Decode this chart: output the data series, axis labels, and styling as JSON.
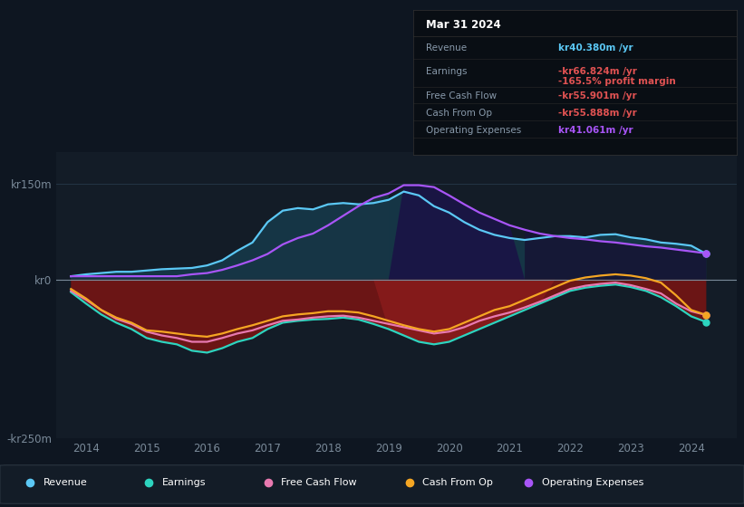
{
  "bg_color": "#0e1621",
  "plot_bg_color": "#131c27",
  "grid_color": "#1e2d3d",
  "title_date": "Mar 31 2024",
  "tooltip": {
    "Revenue": {
      "value": "kr40.380m",
      "color": "#5bc8f5"
    },
    "Earnings": {
      "value": "-kr66.824m",
      "color": "#e05252"
    },
    "profit_margin": "-165.5%",
    "profit_margin_color": "#e05252",
    "Free Cash Flow": {
      "value": "-kr55.901m",
      "color": "#e05252"
    },
    "Cash From Op": {
      "value": "-kr55.888m",
      "color": "#e05252"
    },
    "Operating Expenses": {
      "value": "kr41.061m",
      "color": "#a855f7"
    }
  },
  "ylim": [
    -250,
    200
  ],
  "yticks": [
    -250,
    0,
    150
  ],
  "ytick_labels": [
    "-kr250m",
    "kr0",
    "kr150m"
  ],
  "xlim_start": 2013.5,
  "xlim_end": 2024.75,
  "xticks": [
    2014,
    2015,
    2016,
    2017,
    2018,
    2019,
    2020,
    2021,
    2022,
    2023,
    2024
  ],
  "colors": {
    "revenue": "#5bc8f5",
    "earnings": "#2dd4bf",
    "free_cash_flow": "#e879b0",
    "cash_from_op": "#f5a623",
    "op_expenses": "#a855f7"
  },
  "years": [
    2013.75,
    2014.0,
    2014.25,
    2014.5,
    2014.75,
    2015.0,
    2015.25,
    2015.5,
    2015.75,
    2016.0,
    2016.25,
    2016.5,
    2016.75,
    2017.0,
    2017.25,
    2017.5,
    2017.75,
    2018.0,
    2018.25,
    2018.5,
    2018.75,
    2019.0,
    2019.25,
    2019.5,
    2019.75,
    2020.0,
    2020.25,
    2020.5,
    2020.75,
    2021.0,
    2021.25,
    2021.5,
    2021.75,
    2022.0,
    2022.25,
    2022.5,
    2022.75,
    2023.0,
    2023.25,
    2023.5,
    2023.75,
    2024.0,
    2024.25
  ],
  "revenue": [
    5,
    8,
    10,
    12,
    12,
    14,
    16,
    17,
    18,
    22,
    30,
    45,
    58,
    90,
    108,
    112,
    110,
    118,
    120,
    118,
    120,
    125,
    138,
    132,
    115,
    105,
    90,
    78,
    70,
    65,
    62,
    65,
    68,
    68,
    66,
    70,
    71,
    66,
    63,
    58,
    56,
    53,
    40
  ],
  "earnings": [
    -20,
    -38,
    -55,
    -68,
    -78,
    -92,
    -98,
    -102,
    -112,
    -115,
    -108,
    -98,
    -92,
    -78,
    -68,
    -65,
    -63,
    -62,
    -60,
    -63,
    -70,
    -78,
    -88,
    -98,
    -102,
    -98,
    -88,
    -78,
    -68,
    -58,
    -48,
    -38,
    -28,
    -18,
    -13,
    -10,
    -8,
    -12,
    -18,
    -28,
    -42,
    -58,
    -67
  ],
  "free_cash_flow": [
    -18,
    -32,
    -48,
    -62,
    -70,
    -82,
    -88,
    -92,
    -98,
    -98,
    -92,
    -85,
    -80,
    -72,
    -65,
    -63,
    -60,
    -58,
    -57,
    -60,
    -65,
    -70,
    -75,
    -80,
    -85,
    -82,
    -75,
    -65,
    -58,
    -52,
    -44,
    -35,
    -25,
    -15,
    -10,
    -7,
    -5,
    -9,
    -15,
    -22,
    -38,
    -50,
    -56
  ],
  "cash_from_op": [
    -15,
    -30,
    -48,
    -60,
    -68,
    -80,
    -82,
    -85,
    -88,
    -90,
    -85,
    -78,
    -72,
    -65,
    -58,
    -55,
    -53,
    -50,
    -50,
    -52,
    -58,
    -65,
    -72,
    -78,
    -82,
    -78,
    -68,
    -58,
    -48,
    -42,
    -32,
    -22,
    -12,
    -2,
    3,
    6,
    8,
    6,
    2,
    -5,
    -25,
    -48,
    -56
  ],
  "op_expenses": [
    5,
    5,
    5,
    5,
    5,
    5,
    5,
    5,
    8,
    10,
    15,
    22,
    30,
    40,
    55,
    65,
    72,
    85,
    100,
    115,
    128,
    135,
    148,
    148,
    145,
    132,
    118,
    105,
    95,
    85,
    78,
    72,
    68,
    65,
    63,
    60,
    58,
    55,
    52,
    50,
    47,
    44,
    41
  ]
}
